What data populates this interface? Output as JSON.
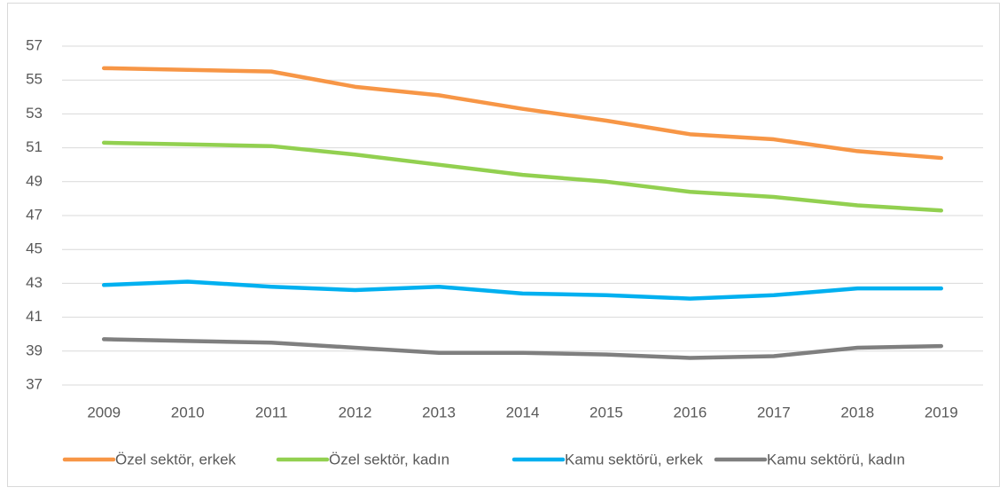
{
  "chart_data": {
    "type": "line",
    "x": [
      2009,
      2010,
      2011,
      2012,
      2013,
      2014,
      2015,
      2016,
      2017,
      2018,
      2019
    ],
    "xlim": [
      2008.5,
      2019.5
    ],
    "ylim": [
      37,
      57
    ],
    "yticks": [
      37,
      39,
      41,
      43,
      45,
      47,
      49,
      51,
      53,
      55,
      57
    ],
    "grid": true,
    "legend": "bottom",
    "series": [
      {
        "name": "Özel sektör, erkek",
        "color": "#f79646",
        "values": [
          55.7,
          55.6,
          55.5,
          54.6,
          54.1,
          53.3,
          52.6,
          51.8,
          51.5,
          50.8,
          50.4
        ]
      },
      {
        "name": "Özel sektör, kadın",
        "color": "#92d050",
        "values": [
          51.3,
          51.2,
          51.1,
          50.6,
          50.0,
          49.4,
          49.0,
          48.4,
          48.1,
          47.6,
          47.3
        ]
      },
      {
        "name": "Kamu sektörü, erkek",
        "color": "#00b0f0",
        "values": [
          42.9,
          43.1,
          42.8,
          42.6,
          42.8,
          42.4,
          42.3,
          42.1,
          42.3,
          42.7,
          42.7
        ]
      },
      {
        "name": "Kamu sektörü, kadın",
        "color": "#7f7f7f",
        "values": [
          39.7,
          39.6,
          39.5,
          39.2,
          38.9,
          38.9,
          38.8,
          38.6,
          38.7,
          39.2,
          39.3
        ]
      }
    ]
  }
}
